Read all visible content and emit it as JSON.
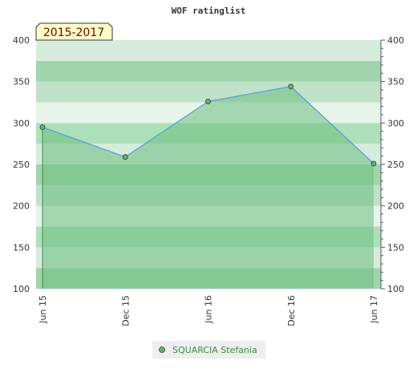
{
  "chart_data": {
    "type": "area",
    "title": "WOF ratinglist",
    "period_badge": "2015-2017",
    "x_ticks": [
      "Jun 15",
      "Dec 15",
      "Jun 16",
      "Dec 16",
      "Jun 17"
    ],
    "ylim": [
      100,
      400
    ],
    "y_ticks": [
      "100",
      "150",
      "200",
      "250",
      "300",
      "350",
      "400"
    ],
    "series": [
      {
        "name": "SQUARCIA Stefania",
        "x": [
          "Jun 15",
          "Dec 15",
          "Jun 16",
          "Dec 16",
          "Jun 17"
        ],
        "values": [
          295,
          259,
          326,
          344,
          251
        ]
      }
    ],
    "legend": "bottom-center",
    "grid": true,
    "colors": {
      "line": "#5aa0d8",
      "marker": "#5cb870",
      "area": "#6dbd80",
      "band_dark": "#a6d6b2",
      "band_light": "#ddefe2"
    }
  }
}
